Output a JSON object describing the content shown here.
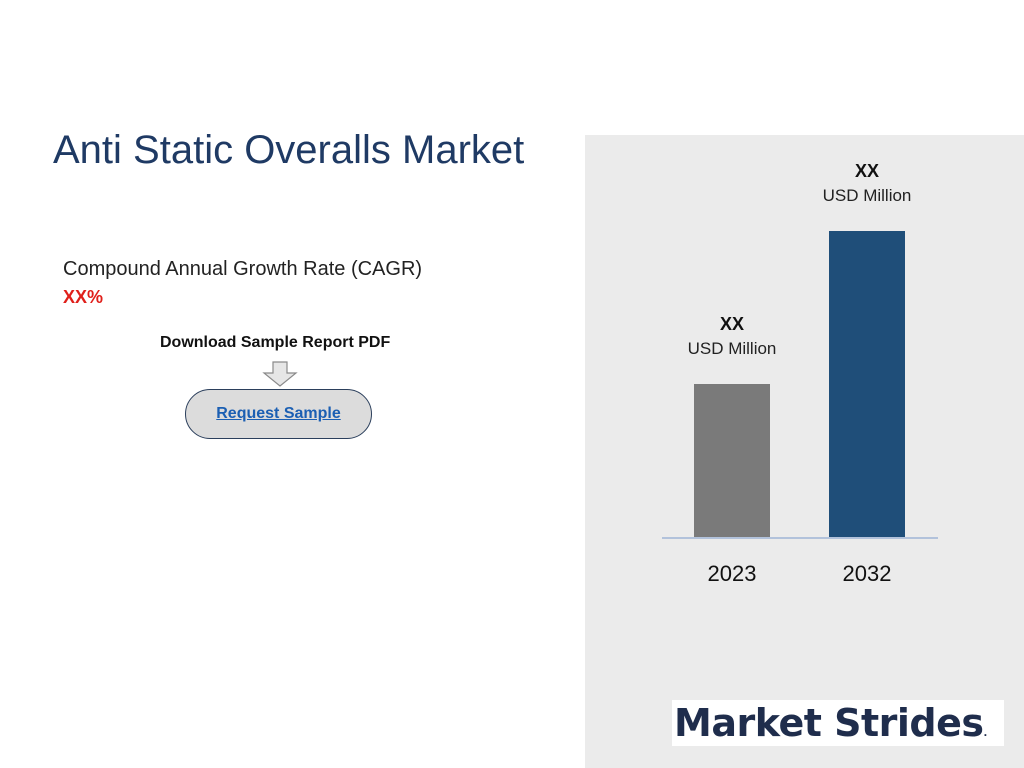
{
  "title": "Anti Static Overalls Market",
  "cagr": {
    "label": "Compound Annual Growth Rate (CAGR)",
    "value": "XX%"
  },
  "download": {
    "label": "Download Sample Report PDF",
    "button_label": "Request Sample"
  },
  "logo": {
    "text": "Market Strides",
    "mark": "."
  },
  "colors": {
    "title": "#1f3a64",
    "cagr_value": "#e0201b",
    "bar_2023": "#7a7a7a",
    "bar_2032": "#1f4e79",
    "panel": "#ebebeb",
    "axis": "#9fb4d6"
  },
  "chart_data": {
    "type": "bar",
    "categories": [
      "2023",
      "2032"
    ],
    "values": [
      30,
      60
    ],
    "value_labels": [
      "XX",
      "XX"
    ],
    "unit_labels": [
      "USD Million",
      "USD Million"
    ],
    "title": "",
    "xlabel": "",
    "ylabel": "",
    "grid": false,
    "legend": "none"
  }
}
